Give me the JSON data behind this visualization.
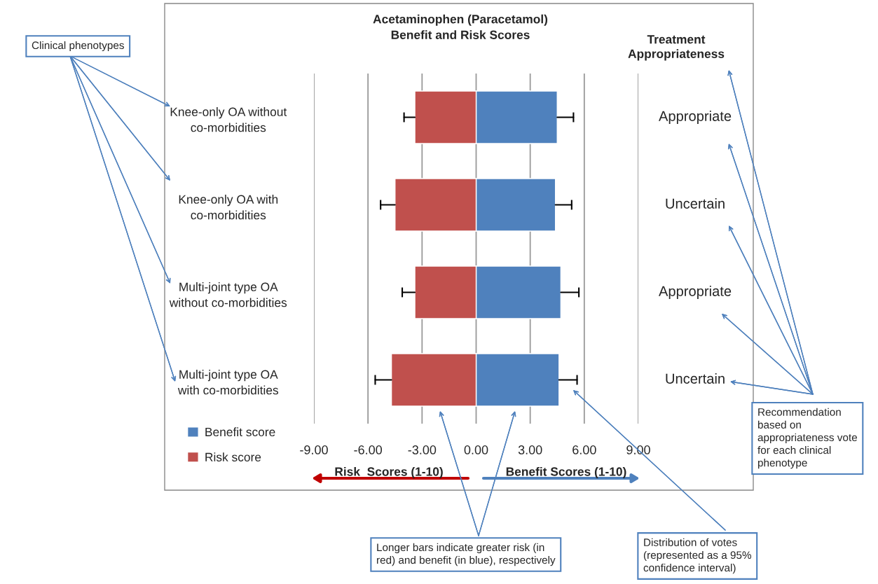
{
  "chart_data": {
    "type": "bar",
    "orientation": "horizontal",
    "title": "Acetaminophen (Paracetamol)\nBenefit and Risk Scores",
    "categories": [
      "Knee-only OA without\nco-morbidities",
      "Knee-only OA with\nco-morbidities",
      "Multi-joint type OA\nwithout co-morbidities",
      "Multi-joint type OA\nwith co-morbidities"
    ],
    "series": [
      {
        "name": "Benefit score",
        "color": "#4f81bd",
        "values": [
          4.5,
          4.4,
          4.7,
          4.6
        ],
        "errors": [
          [
            4.5,
            5.4
          ],
          [
            4.4,
            5.3
          ],
          [
            4.7,
            5.7
          ],
          [
            4.6,
            5.6
          ]
        ]
      },
      {
        "name": "Risk score",
        "color": "#c0504d",
        "values": [
          -3.4,
          -4.5,
          -3.4,
          -4.7
        ],
        "errors": [
          [
            -4.0,
            -3.4
          ],
          [
            -5.3,
            -4.5
          ],
          [
            -4.1,
            -3.4
          ],
          [
            -5.6,
            -4.7
          ]
        ]
      }
    ],
    "stacked": true,
    "xlim": [
      -9,
      9
    ],
    "xticks": [
      {
        "value": -9,
        "label": "-9.00"
      },
      {
        "value": -6,
        "label": "-6.00"
      },
      {
        "value": -3,
        "label": "-3.00"
      },
      {
        "value": 0,
        "label": "0.00"
      },
      {
        "value": 3,
        "label": "3.00"
      },
      {
        "value": 6,
        "label": "6.00"
      },
      {
        "value": 9,
        "label": "9.00"
      }
    ],
    "grid": "x",
    "legend": "bottom left",
    "annotations": [
      "Treatment\nAppropriateness",
      "Appropriate",
      "Uncertain",
      "Appropriate",
      "Uncertain",
      "Risk  Scores (1-10)",
      "Benefit Scores (1-10)",
      "Clinical phenotypes",
      "Recommendation\nbased on\nappropriateness vote\nfor each clinical\nphenotype",
      "Longer bars indicate greater risk (in\nred) and benefit (in blue), respectively",
      "Distribution of votes\n(represented as a 95%\nconfidence interval)"
    ]
  }
}
